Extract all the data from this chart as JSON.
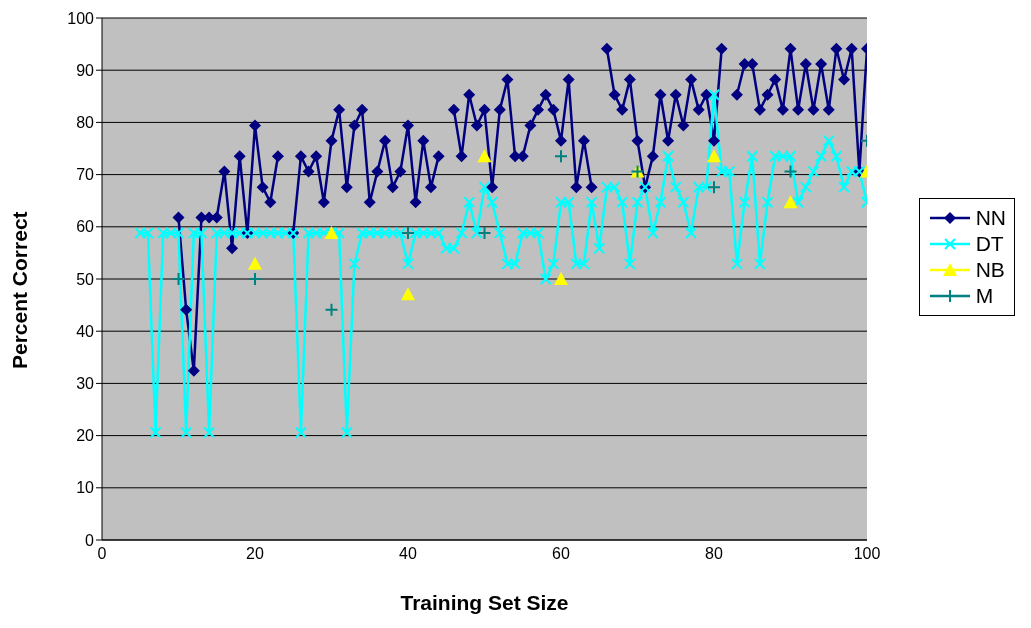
{
  "chart_data": {
    "type": "line",
    "xlabel": "Training Set Size",
    "ylabel": "Percent Correct",
    "xlim": [
      0,
      100
    ],
    "xticks": [
      0,
      20,
      40,
      60,
      80,
      100
    ],
    "ylim": [
      0,
      100
    ],
    "yticks": [
      0,
      10,
      20,
      30,
      40,
      50,
      60,
      70,
      80,
      90,
      100
    ],
    "grid": "y",
    "legend": "right",
    "line_style": "solid",
    "series": [
      {
        "name": "NN",
        "color": "#000080",
        "marker": "diamond",
        "x": [
          10,
          11,
          12,
          13,
          14,
          15,
          16,
          17,
          18,
          19,
          20,
          21,
          22,
          23,
          24,
          25,
          26,
          27,
          28,
          29,
          30,
          31,
          32,
          33,
          34,
          35,
          36,
          37,
          38,
          39,
          40,
          41,
          42,
          43,
          44,
          45,
          46,
          47,
          48,
          49,
          50,
          51,
          52,
          53,
          54,
          55,
          56,
          57,
          58,
          59,
          60,
          61,
          62,
          63,
          64,
          65,
          66,
          67,
          68,
          69,
          70,
          71,
          72,
          73,
          74,
          75,
          76,
          77,
          78,
          79,
          80,
          81,
          82,
          83,
          84,
          85,
          86,
          87,
          88,
          89,
          90,
          91,
          92,
          93,
          94,
          95,
          96,
          97,
          98,
          99,
          100
        ],
        "values": [
          61.8,
          44.1,
          32.4,
          61.8,
          61.8,
          61.8,
          70.6,
          55.9,
          73.5,
          58.8,
          79.4,
          67.6,
          64.7,
          73.5,
          null,
          58.8,
          73.5,
          70.6,
          73.5,
          64.7,
          76.5,
          82.4,
          67.6,
          79.4,
          82.4,
          64.7,
          70.6,
          76.5,
          67.6,
          70.6,
          79.4,
          64.7,
          76.5,
          67.6,
          73.5,
          null,
          82.4,
          73.5,
          85.3,
          79.4,
          82.4,
          67.6,
          82.4,
          88.2,
          73.5,
          73.5,
          79.4,
          82.4,
          85.3,
          82.4,
          76.5,
          88.2,
          67.6,
          76.5,
          67.6,
          null,
          94.1,
          85.3,
          82.4,
          88.2,
          76.5,
          67.6,
          73.5,
          85.3,
          76.5,
          85.3,
          79.4,
          88.2,
          82.4,
          85.3,
          76.5,
          94.1,
          null,
          85.3,
          91.2,
          91.2,
          82.4,
          85.3,
          88.2,
          82.4,
          94.1,
          82.4,
          91.2,
          82.4,
          91.2,
          82.4,
          94.1,
          88.2,
          94.1,
          70.6,
          94.1
        ]
      },
      {
        "name": "DT",
        "color": "#00ffff",
        "marker": "cross",
        "x": [
          5,
          6,
          7,
          8,
          9,
          10,
          11,
          12,
          13,
          14,
          15,
          16,
          17,
          18,
          19,
          20,
          21,
          22,
          23,
          24,
          25,
          26,
          27,
          28,
          29,
          30,
          31,
          32,
          33,
          34,
          35,
          36,
          37,
          38,
          39,
          40,
          41,
          42,
          43,
          44,
          45,
          46,
          47,
          48,
          49,
          50,
          51,
          52,
          53,
          54,
          55,
          56,
          57,
          58,
          59,
          60,
          61,
          62,
          63,
          64,
          65,
          66,
          67,
          68,
          69,
          70,
          71,
          72,
          73,
          74,
          75,
          76,
          77,
          78,
          79,
          80,
          81,
          82,
          83,
          84,
          85,
          86,
          87,
          88,
          89,
          90,
          91,
          92,
          93,
          94,
          95,
          96,
          97,
          98,
          99,
          100
        ],
        "values": [
          58.8,
          58.8,
          20.6,
          58.8,
          58.8,
          58.8,
          20.6,
          58.8,
          58.8,
          20.6,
          58.8,
          58.8,
          58.8,
          58.8,
          58.8,
          58.8,
          58.8,
          58.8,
          58.8,
          58.8,
          58.8,
          20.6,
          58.8,
          58.8,
          58.8,
          58.8,
          58.8,
          20.6,
          52.9,
          58.8,
          58.8,
          58.8,
          58.8,
          58.8,
          58.8,
          52.9,
          58.8,
          58.8,
          58.8,
          58.8,
          55.9,
          55.9,
          58.8,
          64.7,
          58.8,
          67.6,
          64.7,
          58.8,
          52.9,
          52.9,
          58.8,
          58.8,
          58.8,
          50.0,
          52.9,
          64.7,
          64.7,
          52.9,
          52.9,
          64.7,
          55.9,
          67.6,
          67.6,
          64.7,
          52.9,
          64.7,
          67.6,
          58.8,
          64.7,
          73.5,
          67.6,
          64.7,
          58.8,
          67.6,
          67.6,
          85.3,
          70.6,
          70.6,
          52.9,
          64.7,
          73.5,
          52.9,
          64.7,
          73.5,
          73.5,
          73.5,
          64.7,
          67.6,
          70.6,
          73.5,
          76.5,
          73.5,
          67.6,
          70.6,
          70.6,
          64.7
        ]
      },
      {
        "name": "NB",
        "type": "scatter",
        "color": "#ffff00",
        "marker": "triangle",
        "x": [
          20,
          30,
          40,
          50,
          60,
          70,
          80,
          90,
          100
        ],
        "values": [
          52.9,
          58.8,
          47.1,
          73.5,
          50.0,
          70.6,
          73.5,
          64.7,
          70.6
        ]
      },
      {
        "name": "M",
        "type": "scatter",
        "color": "#008080",
        "marker": "plus",
        "x": [
          10,
          20,
          30,
          40,
          50,
          60,
          70,
          80,
          90,
          100
        ],
        "values": [
          50.0,
          50.0,
          44.1,
          58.8,
          58.8,
          73.5,
          70.6,
          67.6,
          70.6,
          76.5
        ]
      }
    ]
  }
}
